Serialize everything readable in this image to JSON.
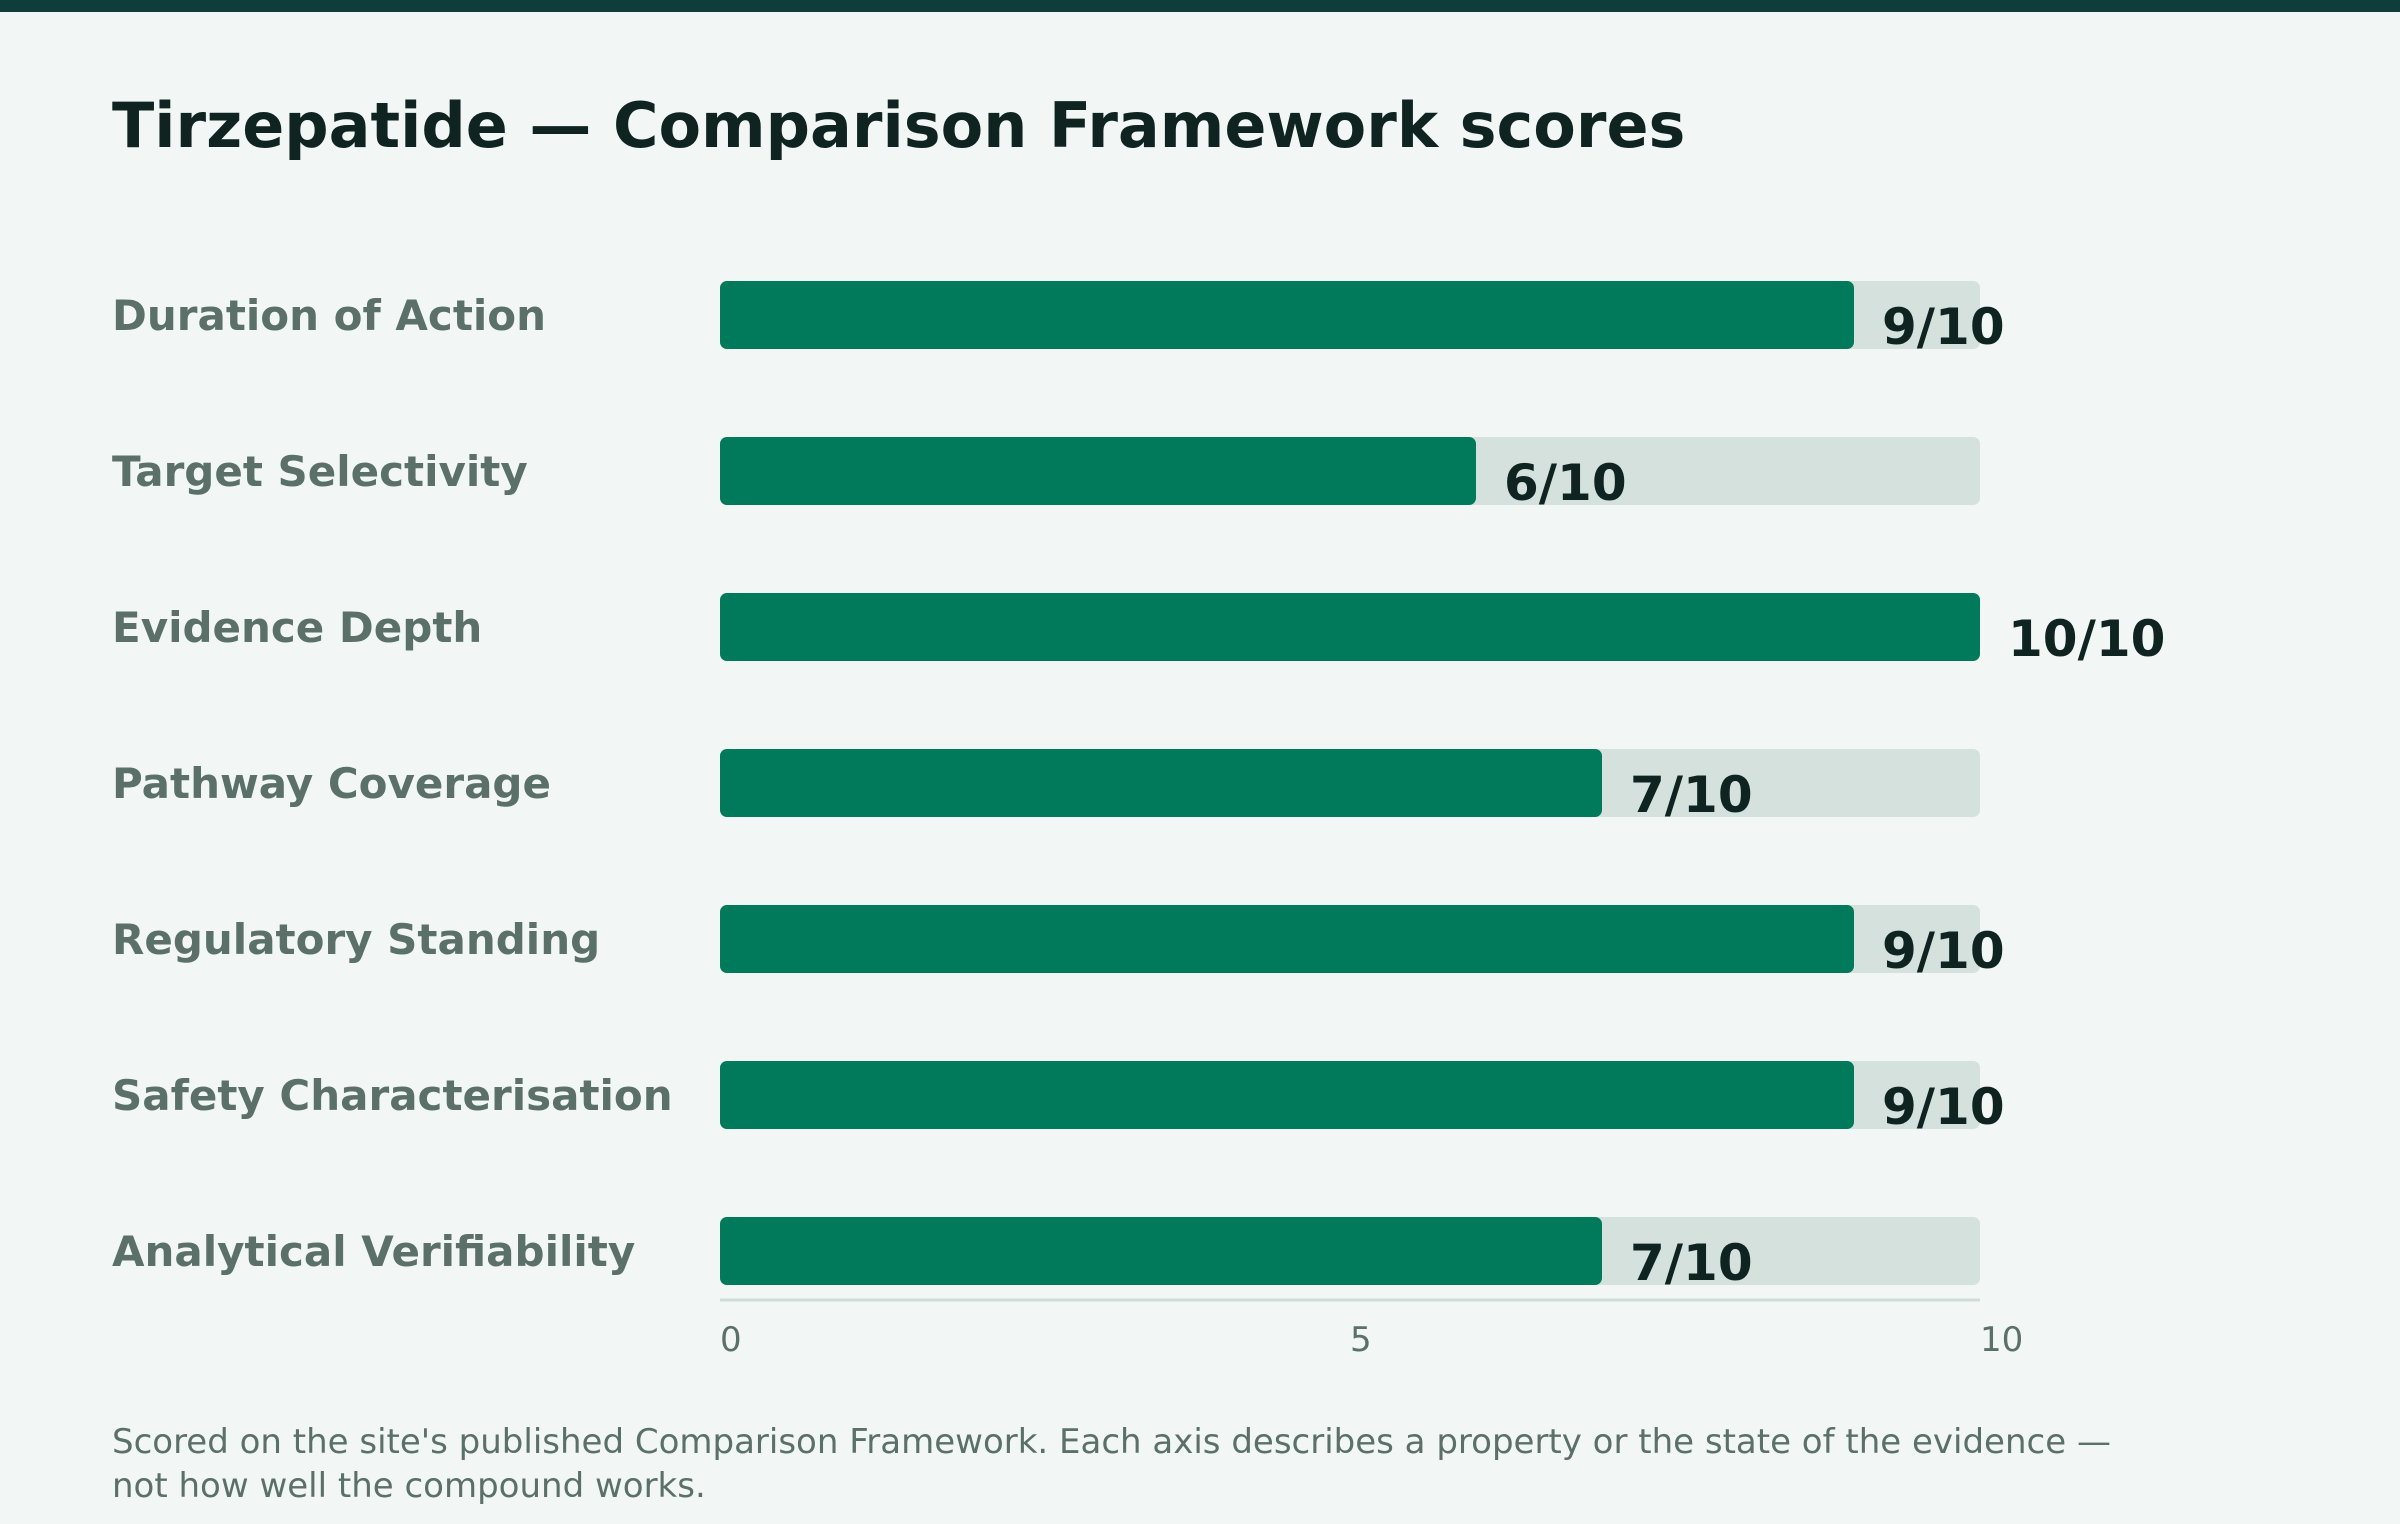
{
  "colors": {
    "bar_fill": "#007a5a",
    "bar_track": "#d4e1dd",
    "axis_line": "#cfdcd8",
    "top_bar": "#0f3d3a"
  },
  "chart_data": {
    "type": "bar",
    "orientation": "horizontal",
    "title": "Tirzepatide — Comparison Framework scores",
    "categories": [
      "Duration of Action",
      "Target Selectivity",
      "Evidence Depth",
      "Pathway Coverage",
      "Regulatory Standing",
      "Safety Characterisation",
      "Analytical Verifiability"
    ],
    "values": [
      9,
      6,
      10,
      7,
      9,
      9,
      7
    ],
    "value_labels": [
      "9/10",
      "6/10",
      "10/10",
      "7/10",
      "9/10",
      "9/10",
      "7/10"
    ],
    "xlim": [
      0,
      10
    ],
    "xticks": [
      0,
      5,
      10
    ],
    "xtick_labels": [
      "0",
      "5",
      "10"
    ],
    "grid": false,
    "legend": "none"
  },
  "footnote": "Scored on the site's published Comparison Framework. Each axis describes a property or the state of the evidence — not how well the compound works."
}
